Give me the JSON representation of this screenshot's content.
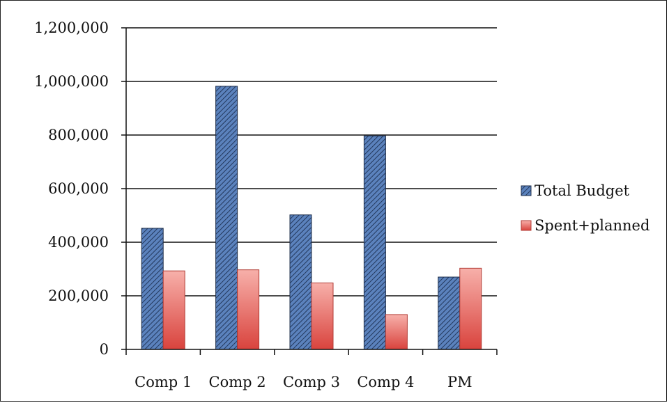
{
  "chart_data": {
    "type": "bar",
    "title": "",
    "xlabel": "",
    "ylabel": "",
    "categories": [
      "Comp 1",
      "Comp 2",
      "Comp 3",
      "Comp 4",
      "PM"
    ],
    "series": [
      {
        "name": "Total Budget",
        "values": [
          452000,
          982000,
          502000,
          797000,
          270000
        ],
        "color": "#4a6fa5",
        "pattern": "diagonal-hatch"
      },
      {
        "name": "Spent+planned",
        "values": [
          293000,
          297000,
          248000,
          130000,
          303000
        ],
        "color": "#e0605a",
        "pattern": "gradient"
      }
    ],
    "ylim": [
      0,
      1200000
    ],
    "yticks": [
      0,
      200000,
      400000,
      600000,
      800000,
      1000000,
      1200000
    ],
    "ytick_labels": [
      "0",
      "200,000",
      "400,000",
      "600,000",
      "800,000",
      "1,000,000",
      "1,200,000"
    ],
    "grid": true,
    "legend_position": "right"
  }
}
